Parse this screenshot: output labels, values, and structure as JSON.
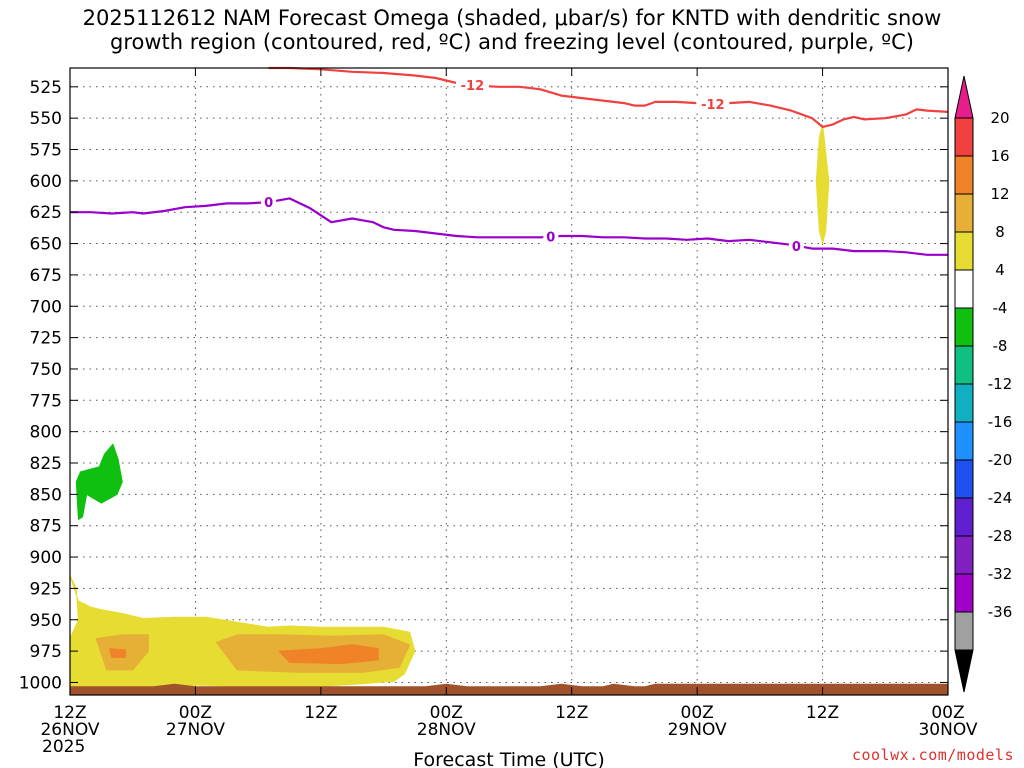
{
  "chart_data": {
    "type": "area",
    "title_lines": [
      "2025112612 NAM Forecast Omega (shaded, μbar/s) for KNTD with dendritic snow",
      "growth region (contoured, red, ºC) and freezing level (contoured, purple, ºC)"
    ],
    "xlabel": "Forecast Time (UTC)",
    "ylabel": "",
    "y_axis": {
      "ticks": [
        525,
        550,
        575,
        600,
        625,
        650,
        675,
        700,
        725,
        750,
        775,
        800,
        825,
        850,
        875,
        900,
        925,
        950,
        975,
        1000
      ],
      "ylim": [
        1010,
        510
      ],
      "grid": true
    },
    "x_axis": {
      "xlim_hours": [
        0,
        84
      ],
      "ticks": [
        {
          "hour": 0,
          "lines": [
            "12Z",
            "26NOV",
            "2025"
          ]
        },
        {
          "hour": 12,
          "lines": [
            "00Z",
            "27NOV"
          ]
        },
        {
          "hour": 24,
          "lines": [
            "12Z"
          ]
        },
        {
          "hour": 36,
          "lines": [
            "00Z",
            "28NOV"
          ]
        },
        {
          "hour": 48,
          "lines": [
            "12Z"
          ]
        },
        {
          "hour": 60,
          "lines": [
            "00Z",
            "29NOV"
          ]
        },
        {
          "hour": 72,
          "lines": [
            "12Z"
          ]
        },
        {
          "hour": 84,
          "lines": [
            "00Z",
            "30NOV"
          ]
        }
      ],
      "grid": true
    },
    "contours": [
      {
        "value": -12,
        "label": "-12",
        "color": "#f04040",
        "label_hours": [
          38.5,
          61.5
        ],
        "points": [
          [
            19,
            506
          ],
          [
            21,
            509
          ],
          [
            24,
            511
          ],
          [
            27,
            513
          ],
          [
            30,
            514
          ],
          [
            33,
            516
          ],
          [
            35,
            518
          ],
          [
            37,
            522
          ],
          [
            39,
            524
          ],
          [
            41,
            525
          ],
          [
            43,
            525
          ],
          [
            45,
            527
          ],
          [
            47,
            532
          ],
          [
            49,
            534
          ],
          [
            51,
            536
          ],
          [
            53,
            538
          ],
          [
            54,
            540
          ],
          [
            55,
            540
          ],
          [
            56,
            537
          ],
          [
            58,
            537
          ],
          [
            60,
            538
          ],
          [
            62,
            539
          ],
          [
            63,
            538
          ],
          [
            65,
            537
          ],
          [
            67,
            540
          ],
          [
            69,
            544
          ],
          [
            71,
            550
          ],
          [
            72,
            557
          ],
          [
            73,
            555
          ],
          [
            74,
            551
          ],
          [
            75,
            549
          ],
          [
            76,
            551
          ],
          [
            78,
            550
          ],
          [
            80,
            547
          ],
          [
            81,
            543
          ],
          [
            82,
            544
          ],
          [
            84,
            545
          ]
        ]
      },
      {
        "value": 0,
        "label": "0",
        "color": "#9900cc",
        "label_hours": [
          19,
          46,
          69.5
        ],
        "points": [
          [
            0,
            625
          ],
          [
            2,
            625
          ],
          [
            4,
            626
          ],
          [
            6,
            625
          ],
          [
            7,
            626
          ],
          [
            9,
            624
          ],
          [
            11,
            621
          ],
          [
            13,
            620
          ],
          [
            15,
            618
          ],
          [
            17,
            618
          ],
          [
            19,
            617
          ],
          [
            21,
            614
          ],
          [
            23,
            622
          ],
          [
            25,
            633
          ],
          [
            27,
            630
          ],
          [
            29,
            633
          ],
          [
            30,
            637
          ],
          [
            31,
            639
          ],
          [
            33,
            640
          ],
          [
            35,
            642
          ],
          [
            37,
            644
          ],
          [
            39,
            645
          ],
          [
            41,
            645
          ],
          [
            43,
            645
          ],
          [
            45,
            645
          ],
          [
            47,
            644
          ],
          [
            49,
            644
          ],
          [
            51,
            645
          ],
          [
            53,
            645
          ],
          [
            55,
            646
          ],
          [
            57,
            646
          ],
          [
            59,
            647
          ],
          [
            61,
            646
          ],
          [
            63,
            648
          ],
          [
            65,
            647
          ],
          [
            67,
            649
          ],
          [
            69,
            651
          ],
          [
            71,
            654
          ],
          [
            73,
            654
          ],
          [
            75,
            656
          ],
          [
            76,
            656
          ],
          [
            78,
            656
          ],
          [
            80,
            657
          ],
          [
            82,
            659
          ],
          [
            84,
            659
          ]
        ]
      }
    ],
    "shaded_regions": [
      {
        "value": 6,
        "color": "#e6dc32",
        "points": [
          [
            0,
            915
          ],
          [
            0.6,
            925
          ],
          [
            0.8,
            950
          ],
          [
            0,
            965
          ],
          [
            0,
            1005
          ],
          [
            2,
            1008
          ],
          [
            4,
            1003
          ],
          [
            8,
            1006
          ],
          [
            12,
            1002
          ],
          [
            16,
            1003
          ],
          [
            20,
            1004
          ],
          [
            24,
            1003
          ],
          [
            28,
            1001
          ],
          [
            31,
            999
          ],
          [
            32,
            993
          ],
          [
            33,
            975
          ],
          [
            32.5,
            960
          ],
          [
            30,
            956
          ],
          [
            27,
            956
          ],
          [
            24,
            956
          ],
          [
            21,
            955
          ],
          [
            19,
            956
          ],
          [
            16,
            952
          ],
          [
            13,
            948
          ],
          [
            10,
            948
          ],
          [
            7,
            949
          ],
          [
            5,
            945
          ],
          [
            3,
            942
          ],
          [
            2,
            940
          ],
          [
            0.8,
            935
          ]
        ]
      },
      {
        "value": 6,
        "color": "#e6dc32",
        "points": [
          [
            72,
            555
          ],
          [
            72.6,
            600
          ],
          [
            72.3,
            640
          ],
          [
            72,
            650
          ],
          [
            71.7,
            640
          ],
          [
            71.4,
            600
          ],
          [
            71.7,
            565
          ]
        ]
      },
      {
        "value": 10,
        "color": "#e6b036",
        "points": [
          [
            2.5,
            965
          ],
          [
            3.5,
            990
          ],
          [
            6,
            990
          ],
          [
            7.5,
            975
          ],
          [
            7.5,
            962
          ],
          [
            5,
            962
          ]
        ]
      },
      {
        "value": 10,
        "color": "#e6b036",
        "points": [
          [
            14,
            968
          ],
          [
            16,
            990
          ],
          [
            22,
            992
          ],
          [
            28,
            992
          ],
          [
            31.5,
            988
          ],
          [
            32.5,
            970
          ],
          [
            30,
            962
          ],
          [
            25,
            963
          ],
          [
            20,
            962
          ],
          [
            16,
            962
          ]
        ]
      },
      {
        "value": 14,
        "color": "#f08228",
        "points": [
          [
            3.8,
            973
          ],
          [
            4,
            980
          ],
          [
            5.3,
            980
          ],
          [
            5.3,
            974
          ]
        ]
      },
      {
        "value": 14,
        "color": "#f08228",
        "points": [
          [
            20,
            975
          ],
          [
            21,
            984
          ],
          [
            26,
            985
          ],
          [
            29.5,
            982
          ],
          [
            29.5,
            973
          ],
          [
            27,
            970
          ],
          [
            24,
            973
          ]
        ]
      },
      {
        "value": -6,
        "color": "#10c010",
        "points": [
          [
            1,
            832
          ],
          [
            0.6,
            840
          ],
          [
            0.8,
            870
          ],
          [
            1.2,
            868
          ],
          [
            1.6,
            850
          ],
          [
            3,
            857
          ],
          [
            4.5,
            850
          ],
          [
            5,
            840
          ],
          [
            4.6,
            822
          ],
          [
            4.1,
            810
          ],
          [
            3.3,
            818
          ],
          [
            2.8,
            828
          ]
        ]
      }
    ],
    "terrain": {
      "color": "#a0522d",
      "top_pressure": [
        [
          0,
          1003
        ],
        [
          8,
          1003
        ],
        [
          10,
          1001
        ],
        [
          12,
          1003
        ],
        [
          20,
          1003
        ],
        [
          34,
          1003
        ],
        [
          36,
          1001
        ],
        [
          38,
          1003
        ],
        [
          45,
          1003
        ],
        [
          47,
          1001
        ],
        [
          49,
          1003
        ],
        [
          51,
          1003
        ],
        [
          52,
          1001
        ],
        [
          54,
          1003
        ],
        [
          55,
          1003
        ],
        [
          56,
          1001
        ],
        [
          84,
          1001
        ]
      ]
    },
    "colorbar": {
      "units": "μbar/s",
      "levels": [
        20,
        16,
        12,
        8,
        4,
        -4,
        -8,
        -12,
        -16,
        -20,
        -24,
        -28,
        -32,
        -36
      ],
      "colors": [
        "#f04040",
        "#f08228",
        "#e6b036",
        "#e6dc32",
        "#ffffff",
        "#10c010",
        "#10c080",
        "#10b0c0",
        "#1e90ff",
        "#2050f0",
        "#6020d0",
        "#8020c0",
        "#a000c8",
        "#a0a0a0"
      ],
      "top_arrow_color": "#e61e8c",
      "bottom_arrow_color": "#000000"
    }
  },
  "credit": "coolwx.com/models"
}
